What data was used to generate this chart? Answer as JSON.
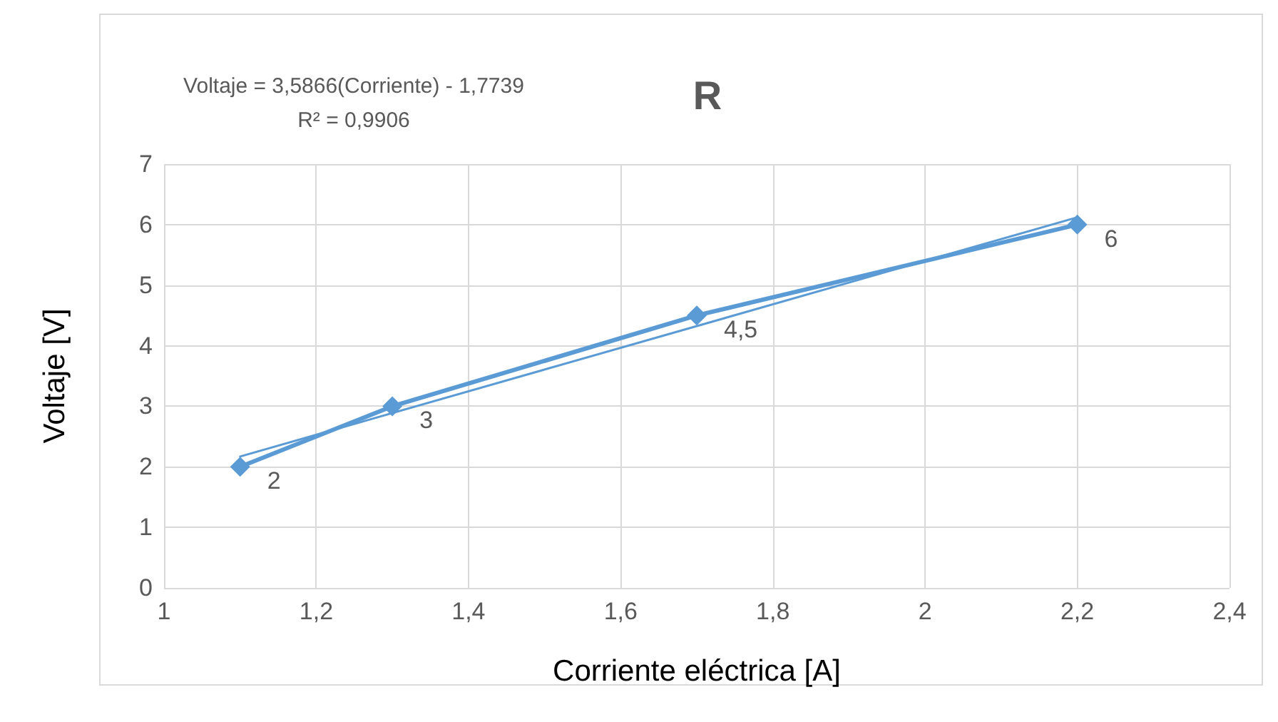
{
  "chart_data": {
    "type": "line",
    "title": "R",
    "xlabel": "Corriente eléctrica [A]",
    "ylabel": "Voltaje [V]",
    "annotations": [
      "Voltaje = 3,5866(Corriente) - 1,7739",
      "R² = 0,9906"
    ],
    "x": [
      1.1,
      1.3,
      1.7,
      2.2
    ],
    "series": [
      {
        "color": "#5b9bd5",
        "values": [
          2,
          3,
          4.5,
          6
        ],
        "value_labels": [
          "2",
          "3",
          "4,5",
          "6"
        ],
        "marker": "diamond"
      },
      {
        "type": "line",
        "color": "#5b9bd5",
        "x": [
          1.1,
          2.2
        ],
        "values": [
          2.17,
          6.12
        ],
        "marker": "none"
      }
    ],
    "xlim": [
      1,
      2.4
    ],
    "xticks": [
      1,
      {
        "value": 1.2,
        "label": "1,2"
      },
      {
        "value": 1.4,
        "label": "1,4"
      },
      {
        "value": 1.6,
        "label": "1,6"
      },
      {
        "value": 1.8,
        "label": "1,8"
      },
      2,
      {
        "value": 2.2,
        "label": "2,2"
      },
      {
        "value": 2.4,
        "label": "2,4"
      }
    ],
    "ylim": [
      0,
      7
    ],
    "yticks": [
      0,
      1,
      2,
      3,
      4,
      5,
      6,
      7
    ],
    "grid": true
  }
}
